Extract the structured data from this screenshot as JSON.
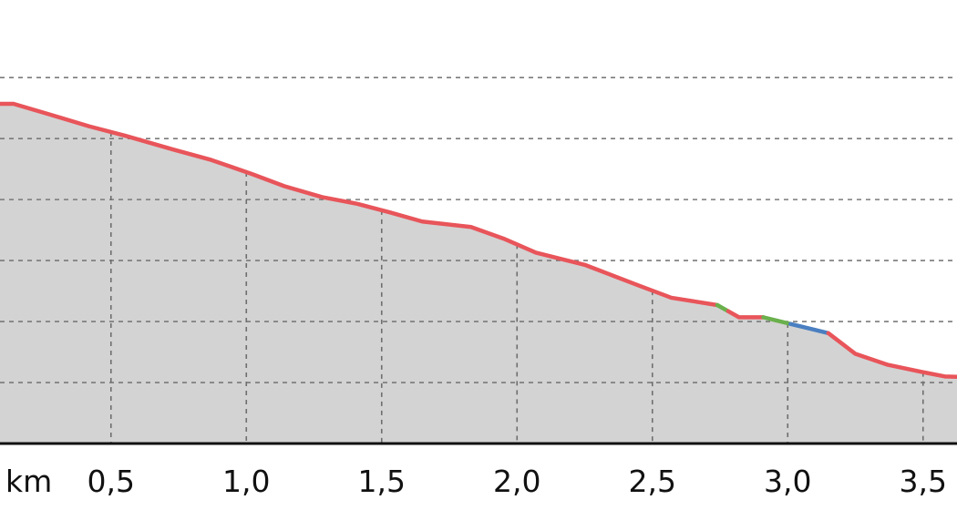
{
  "chart_data": {
    "type": "area",
    "title": "",
    "xlabel": "",
    "ylabel": "",
    "x_unit_label": "km",
    "x_tick_values": [
      0.5,
      1.0,
      1.5,
      2.0,
      2.5,
      3.0,
      3.5
    ],
    "x_tick_labels": [
      "0,5",
      "1,0",
      "1,5",
      "2,0",
      "2,5",
      "3,0",
      "3,5"
    ],
    "xlim": [
      0.09,
      3.65
    ],
    "y_gridlines": 6,
    "grid": true,
    "legend": "none",
    "colors": {
      "fill": "#d3d3d3",
      "line_default": "#e8555a",
      "line_green": "#6ab04c",
      "line_blue": "#4a7fc1"
    },
    "profile_x": [
      0.09,
      0.14,
      0.27,
      0.42,
      0.55,
      0.73,
      0.87,
      1.02,
      1.14,
      1.28,
      1.41,
      1.53,
      1.65,
      1.83,
      1.95,
      2.07,
      2.25,
      2.45,
      2.57,
      2.74,
      2.82,
      2.91,
      3.01,
      3.15,
      3.25,
      3.37,
      3.5,
      3.58,
      3.65
    ],
    "profile_y": [
      5.57,
      5.57,
      5.4,
      5.2,
      5.05,
      4.82,
      4.65,
      4.42,
      4.22,
      4.04,
      3.93,
      3.79,
      3.64,
      3.55,
      3.36,
      3.13,
      2.93,
      2.59,
      2.39,
      2.27,
      2.07,
      2.07,
      1.96,
      1.81,
      1.47,
      1.29,
      1.17,
      1.1,
      1.09
    ],
    "segments": [
      {
        "from_x": 0.09,
        "to_x": 2.74,
        "color": "line_default"
      },
      {
        "from_x": 2.74,
        "to_x": 2.78,
        "color": "line_green"
      },
      {
        "from_x": 2.78,
        "to_x": 2.91,
        "color": "line_default"
      },
      {
        "from_x": 2.91,
        "to_x": 3.01,
        "color": "line_green"
      },
      {
        "from_x": 3.01,
        "to_x": 3.15,
        "color": "line_blue"
      },
      {
        "from_x": 3.15,
        "to_x": 3.65,
        "color": "line_default"
      }
    ]
  }
}
